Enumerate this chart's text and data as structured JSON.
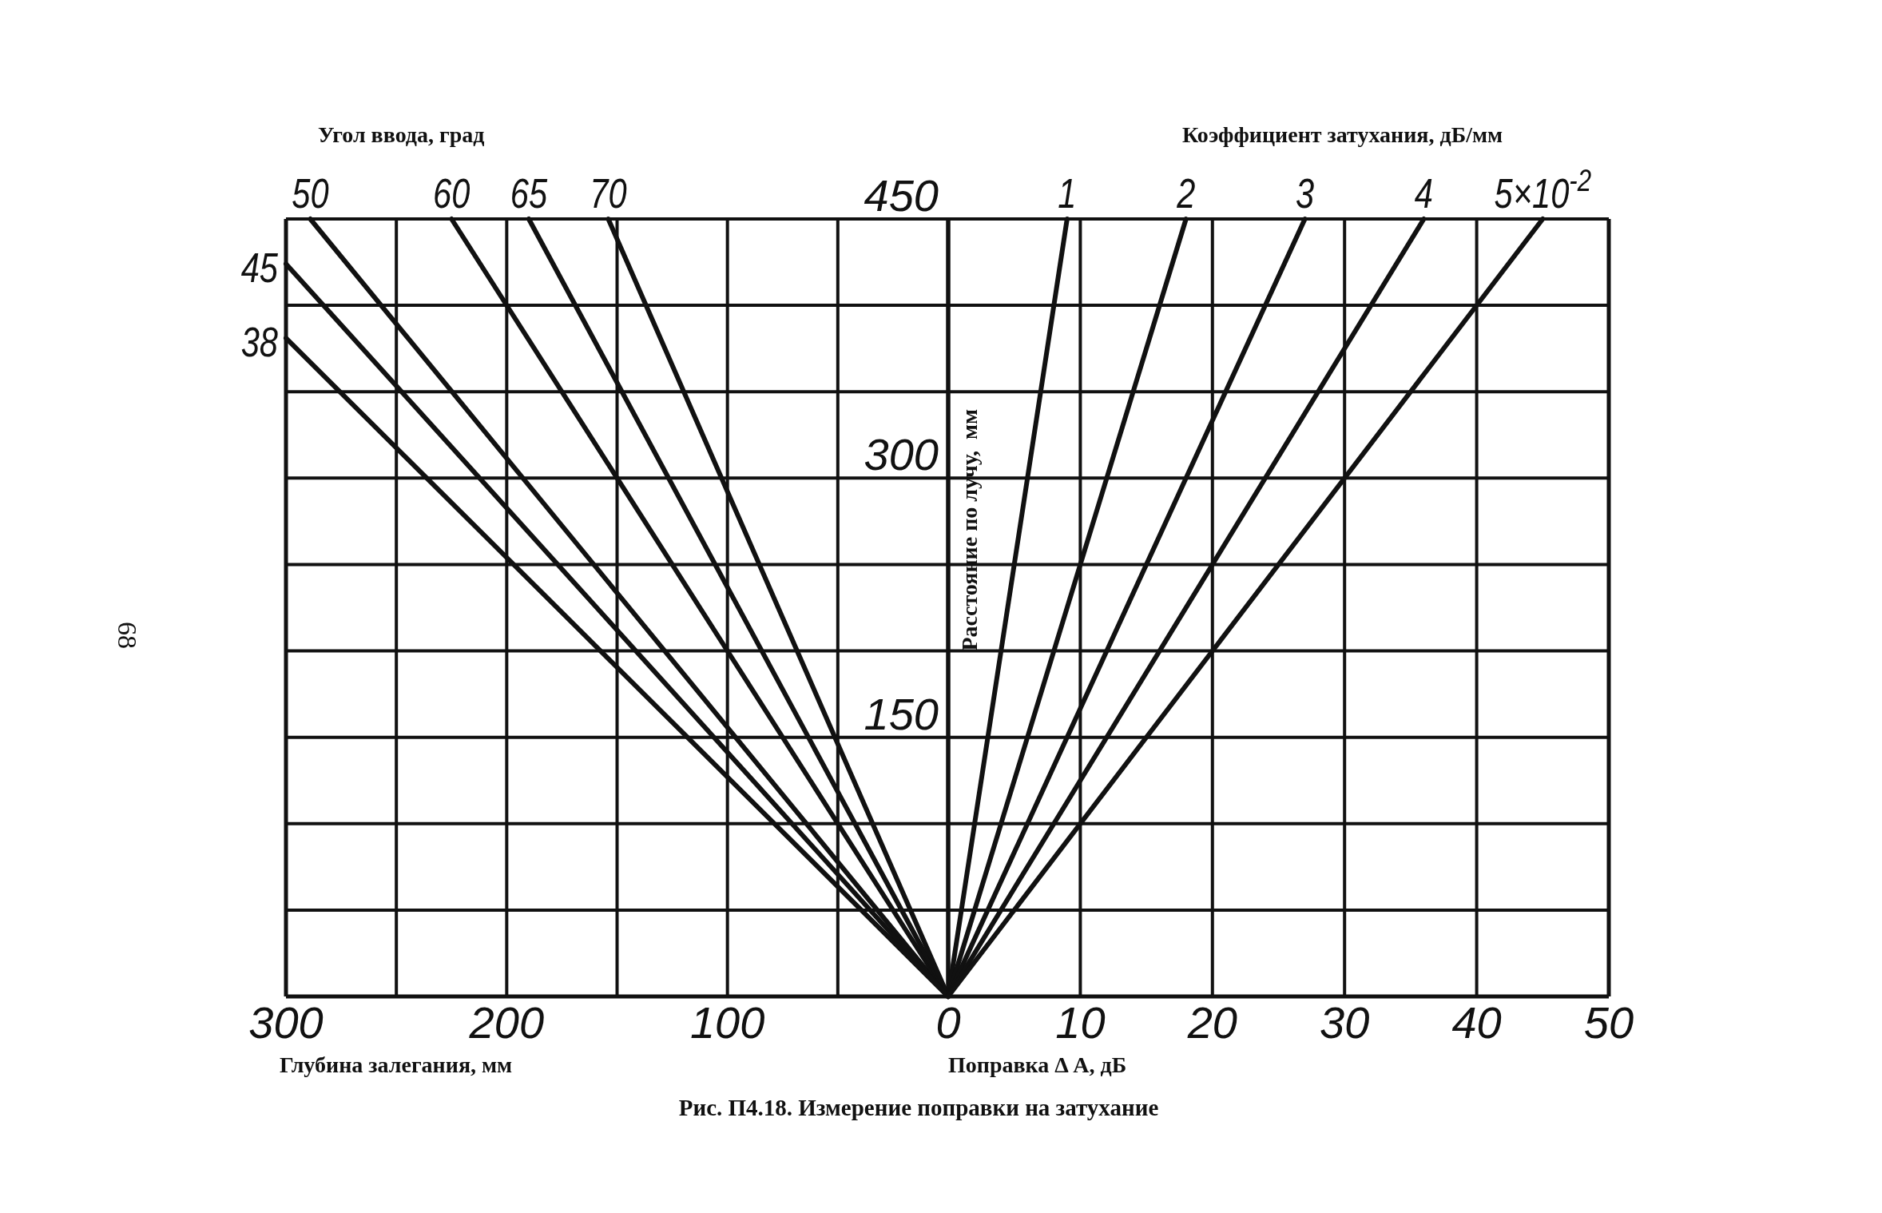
{
  "chart_data": [
    {
      "type": "line",
      "legend_title": "Угол ввода, град",
      "xlabel": "Глубина залегания, мм",
      "xlim": [
        300,
        0
      ],
      "xticks": [
        300,
        {
          "value": 250,
          "label": null
        },
        200,
        {
          "value": 150,
          "label": null
        },
        100,
        {
          "value": 50,
          "label": null
        },
        {
          "value": 0,
          "label": null
        }
      ],
      "ylim": [
        0,
        450
      ],
      "yticks": [
        {
          "value": 50,
          "label": null
        },
        {
          "value": 100,
          "label": null
        },
        150,
        {
          "value": 200,
          "label": null
        },
        {
          "value": 250,
          "label": null
        },
        300,
        {
          "value": 350,
          "label": null
        },
        {
          "value": 400,
          "label": null
        },
        450
      ],
      "grid": true,
      "color": "#111111",
      "series": [
        {
          "name": "50",
          "x": [
            0,
            289
          ],
          "values": [
            0,
            450
          ]
        },
        {
          "name": "60",
          "x": [
            0,
            225
          ],
          "values": [
            0,
            450
          ]
        },
        {
          "name": "65",
          "x": [
            0,
            190
          ],
          "values": [
            0,
            450
          ]
        },
        {
          "name": "70",
          "x": [
            0,
            154
          ],
          "values": [
            0,
            450
          ]
        },
        {
          "name": "45",
          "x": [
            0,
            300
          ],
          "values": [
            0,
            424
          ]
        },
        {
          "name": "38",
          "x": [
            0,
            300
          ],
          "values": [
            0,
            381
          ]
        }
      ],
      "annotations": [
        "68"
      ]
    },
    {
      "type": "line",
      "legend_title": "Коэффициент затухания, дБ/мм",
      "xlabel": "Поправка Δ A, дБ",
      "ylabel": "Расстояние по лучу,  мм",
      "xlim": [
        0,
        50
      ],
      "xticks": [
        0,
        10,
        20,
        30,
        40,
        50
      ],
      "ylim": [
        0,
        450
      ],
      "tick_labels": "x",
      "grid": true,
      "color": "#111111",
      "series": [
        {
          "name": "1",
          "x": [
            0,
            9
          ],
          "values": [
            0,
            450
          ]
        },
        {
          "name": "2",
          "x": [
            0,
            18
          ],
          "values": [
            0,
            450
          ]
        },
        {
          "name": "3",
          "x": [
            0,
            27
          ],
          "values": [
            0,
            450
          ]
        },
        {
          "name": "4",
          "x": [
            0,
            36
          ],
          "values": [
            0,
            450
          ]
        },
        {
          "name": "5×10$^{-2}$",
          "x": [
            0,
            45
          ],
          "values": [
            0,
            450
          ]
        }
      ],
      "annotations": [
        "Рис. П4.18. Измерение поправки на затухание"
      ]
    }
  ]
}
